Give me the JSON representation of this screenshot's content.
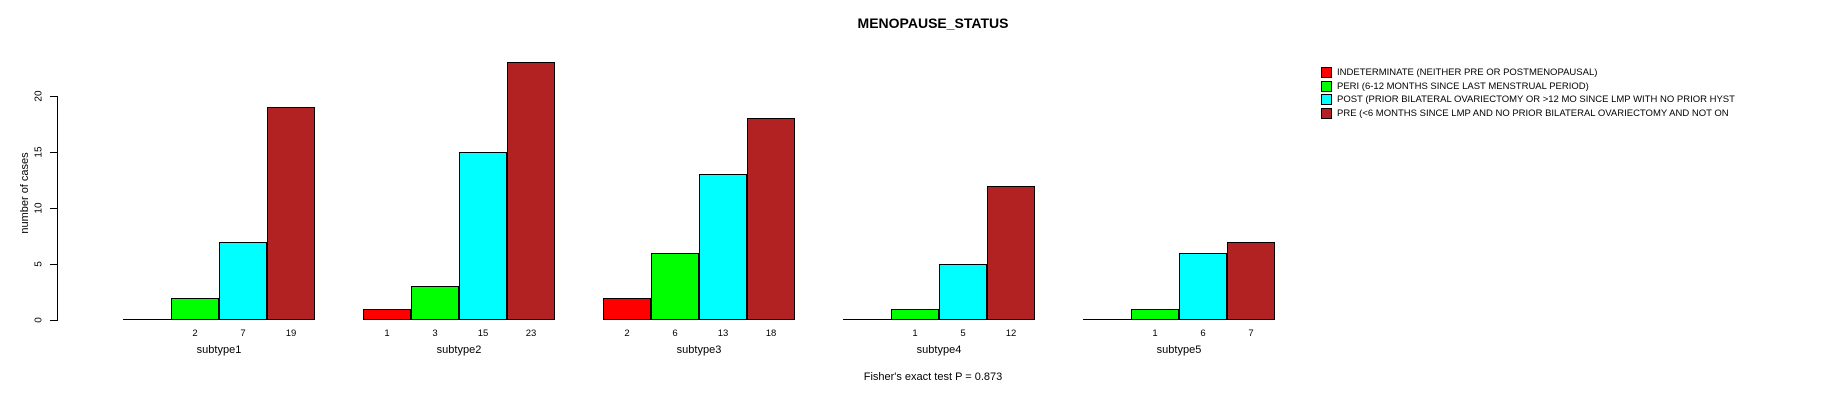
{
  "title": "MENOPAUSE_STATUS",
  "footer": "Fisher's exact test P = 0.873",
  "y_axis": {
    "label": "number of cases",
    "ticks": [
      0,
      5,
      10,
      15,
      20
    ]
  },
  "legend": {
    "items": [
      {
        "label": "INDETERMINATE (NEITHER PRE OR POSTMENOPAUSAL)",
        "color": "#FF0000"
      },
      {
        "label": "PERI (6-12 MONTHS SINCE LAST MENSTRUAL PERIOD)",
        "color": "#00FF00"
      },
      {
        "label": "POST (PRIOR BILATERAL OVARIECTOMY OR >12 MO SINCE LMP WITH NO PRIOR HYST",
        "color": "#00FFFF"
      },
      {
        "label": "PRE (<6 MONTHS SINCE LMP AND NO PRIOR BILATERAL OVARIECTOMY AND NOT ON",
        "color": "#B22222"
      }
    ]
  },
  "chart_data": {
    "type": "bar",
    "title": "MENOPAUSE_STATUS",
    "xlabel": "",
    "ylabel": "number of cases",
    "ylim": [
      0,
      23
    ],
    "y_ticks": [
      0,
      5,
      10,
      15,
      20
    ],
    "grid": false,
    "legend_position": "top-right",
    "annotation": "Fisher's exact test P = 0.873",
    "categories": [
      "subtype1",
      "subtype2",
      "subtype3",
      "subtype4",
      "subtype5"
    ],
    "series": [
      {
        "name": "INDETERMINATE (NEITHER PRE OR POSTMENOPAUSAL)",
        "color": "#FF0000",
        "values": [
          0,
          1,
          2,
          0,
          0
        ]
      },
      {
        "name": "PERI (6-12 MONTHS SINCE LAST MENSTRUAL PERIOD)",
        "color": "#00FF00",
        "values": [
          2,
          3,
          6,
          1,
          1
        ]
      },
      {
        "name": "POST (PRIOR BILATERAL OVARIECTOMY OR >12 MO SINCE LMP WITH NO PRIOR HYST",
        "color": "#00FFFF",
        "values": [
          7,
          15,
          13,
          5,
          6
        ]
      },
      {
        "name": "PRE (<6 MONTHS SINCE LMP AND NO PRIOR BILATERAL OVARIECTOMY AND NOT ON",
        "color": "#B22222",
        "values": [
          19,
          23,
          18,
          12,
          7
        ]
      }
    ],
    "value_labels_under_bars": true,
    "zero_values_unlabeled": true
  }
}
